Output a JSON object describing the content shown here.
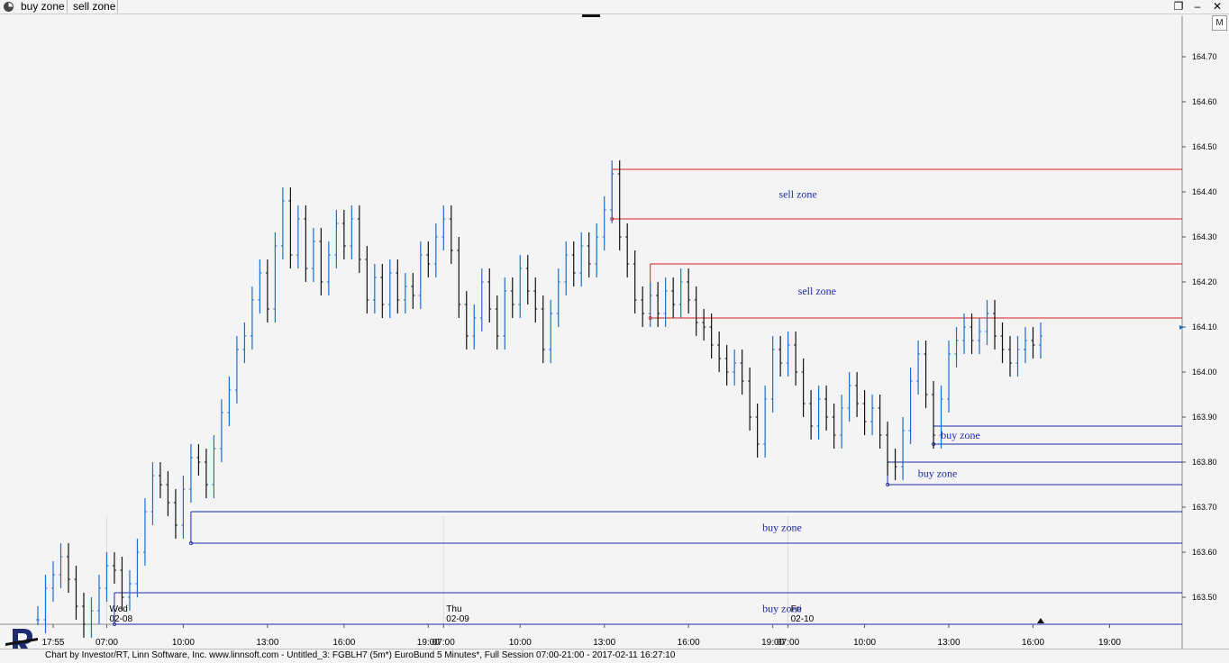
{
  "tabs": [
    {
      "label": "buy zone"
    },
    {
      "label": "sell zone"
    }
  ],
  "window": {
    "restore_icon": "restore-icon",
    "minimize_icon": "minimize-icon",
    "close_icon": "close-icon",
    "m_button_label": "M"
  },
  "status_bar": {
    "text": "Chart by Investor/RT, Linn Software, Inc. www.linnsoft.com - Untitled_3: FGBLH7 (5m*) EuroBund 5 Minutes*, Full Session 07:00-21:00 - 2017-02-11 16:27:10"
  },
  "colors": {
    "up_bar": "#1c6fd0",
    "down_bar": "#111111",
    "sell_zone": "#d42020",
    "buy_zone": "#1a2aa8",
    "zone_label": "#1a2aa8",
    "background": "#f4f4f4"
  },
  "chart_data": {
    "type": "line",
    "title": "",
    "symbol": "FGBLH7",
    "description": "EuroBund 5 Minutes",
    "interval": "5m",
    "ylim": [
      163.44,
      164.79
    ],
    "y_ticks": [
      "164.70",
      "164.60",
      "164.50",
      "164.40",
      "164.30",
      "164.20",
      "164.10",
      "164.00",
      "163.90",
      "163.80",
      "163.70",
      "163.60",
      "163.50"
    ],
    "x_ticks": [
      "17:55",
      "07:00",
      "10:00",
      "13:00",
      "16:00",
      "19:00",
      "07:00",
      "10:00",
      "13:00",
      "16:00",
      "19:00",
      "07:00",
      "10:00",
      "13:00",
      "16:00",
      "19:00"
    ],
    "day_labels": [
      {
        "day": "Wed",
        "date": "02-08"
      },
      {
        "day": "Thu",
        "date": "02-09"
      },
      {
        "day": "Fri",
        "date": "02-10"
      }
    ],
    "last_price": 164.1,
    "series": [
      {
        "points": [
          [
            0,
            163.45
          ],
          [
            1,
            163.52
          ],
          [
            2,
            163.55
          ],
          [
            3,
            163.59
          ],
          [
            4,
            163.54
          ],
          [
            5,
            163.48
          ],
          [
            6,
            163.44
          ],
          [
            7,
            163.47
          ],
          [
            8,
            163.52
          ],
          [
            9,
            163.57
          ],
          [
            10,
            163.56
          ],
          [
            11,
            163.5
          ],
          [
            12,
            163.53
          ],
          [
            13,
            163.6
          ],
          [
            14,
            163.69
          ],
          [
            15,
            163.77
          ],
          [
            16,
            163.75
          ],
          [
            17,
            163.71
          ],
          [
            18,
            163.66
          ],
          [
            19,
            163.74
          ],
          [
            20,
            163.81
          ],
          [
            21,
            163.8
          ],
          [
            22,
            163.75
          ],
          [
            23,
            163.83
          ],
          [
            24,
            163.91
          ],
          [
            25,
            163.96
          ],
          [
            26,
            164.05
          ],
          [
            27,
            164.08
          ],
          [
            28,
            164.16
          ],
          [
            29,
            164.22
          ],
          [
            30,
            164.14
          ],
          [
            31,
            164.28
          ],
          [
            32,
            164.38
          ],
          [
            33,
            164.26
          ],
          [
            34,
            164.34
          ],
          [
            35,
            164.23
          ],
          [
            36,
            164.29
          ],
          [
            37,
            164.2
          ],
          [
            38,
            164.26
          ],
          [
            39,
            164.33
          ],
          [
            40,
            164.28
          ],
          [
            41,
            164.34
          ],
          [
            42,
            164.25
          ],
          [
            43,
            164.16
          ],
          [
            44,
            164.21
          ],
          [
            45,
            164.15
          ],
          [
            46,
            164.22
          ],
          [
            47,
            164.16
          ],
          [
            48,
            164.19
          ],
          [
            49,
            164.17
          ],
          [
            50,
            164.26
          ],
          [
            51,
            164.24
          ],
          [
            52,
            164.3
          ],
          [
            53,
            164.34
          ],
          [
            54,
            164.27
          ],
          [
            55,
            164.15
          ],
          [
            56,
            164.08
          ],
          [
            57,
            164.12
          ],
          [
            58,
            164.2
          ],
          [
            59,
            164.14
          ],
          [
            60,
            164.08
          ],
          [
            61,
            164.18
          ],
          [
            62,
            164.15
          ],
          [
            63,
            164.23
          ],
          [
            64,
            164.18
          ],
          [
            65,
            164.14
          ],
          [
            66,
            164.05
          ],
          [
            67,
            164.13
          ],
          [
            68,
            164.2
          ],
          [
            69,
            164.26
          ],
          [
            70,
            164.22
          ],
          [
            71,
            164.28
          ],
          [
            72,
            164.24
          ],
          [
            73,
            164.3
          ],
          [
            74,
            164.36
          ],
          [
            75,
            164.44
          ],
          [
            76,
            164.3
          ],
          [
            77,
            164.24
          ],
          [
            78,
            164.16
          ],
          [
            79,
            164.13
          ],
          [
            80,
            164.17
          ],
          [
            81,
            164.13
          ],
          [
            82,
            164.18
          ],
          [
            83,
            164.15
          ],
          [
            84,
            164.2
          ],
          [
            85,
            164.16
          ],
          [
            86,
            164.11
          ],
          [
            87,
            164.1
          ],
          [
            88,
            164.06
          ],
          [
            89,
            164.03
          ],
          [
            90,
            164.0
          ],
          [
            91,
            164.02
          ],
          [
            92,
            163.98
          ],
          [
            93,
            163.9
          ],
          [
            94,
            163.84
          ],
          [
            95,
            163.94
          ],
          [
            96,
            164.05
          ],
          [
            97,
            164.02
          ],
          [
            98,
            164.06
          ],
          [
            99,
            164.0
          ],
          [
            100,
            163.93
          ],
          [
            101,
            163.88
          ],
          [
            102,
            163.94
          ],
          [
            103,
            163.9
          ],
          [
            104,
            163.86
          ],
          [
            105,
            163.92
          ],
          [
            106,
            163.97
          ],
          [
            107,
            163.93
          ],
          [
            108,
            163.89
          ],
          [
            109,
            163.92
          ],
          [
            110,
            163.86
          ],
          [
            111,
            163.8
          ],
          [
            112,
            163.79
          ],
          [
            113,
            163.87
          ],
          [
            114,
            163.98
          ],
          [
            115,
            164.04
          ],
          [
            116,
            163.95
          ],
          [
            117,
            163.86
          ],
          [
            118,
            163.94
          ],
          [
            119,
            164.04
          ],
          [
            120,
            164.07
          ],
          [
            121,
            164.1
          ],
          [
            122,
            164.07
          ],
          [
            123,
            164.09
          ],
          [
            124,
            164.13
          ],
          [
            125,
            164.08
          ],
          [
            126,
            164.05
          ],
          [
            127,
            164.02
          ],
          [
            128,
            164.05
          ],
          [
            129,
            164.07
          ],
          [
            130,
            164.06
          ],
          [
            131,
            164.08
          ]
        ]
      }
    ],
    "zones": [
      {
        "type": "sell",
        "label": "sell zone",
        "top": 164.45,
        "bottom": 164.34,
        "start_index": 75
      },
      {
        "type": "sell",
        "label": "sell zone",
        "top": 164.24,
        "bottom": 164.12,
        "start_index": 80
      },
      {
        "type": "buy",
        "label": "buy zone",
        "top": 163.88,
        "bottom": 163.84,
        "start_index": 117
      },
      {
        "type": "buy",
        "label": "buy zone",
        "top": 163.8,
        "bottom": 163.75,
        "start_index": 111
      },
      {
        "type": "buy",
        "label": "buy zone",
        "top": 163.69,
        "bottom": 163.62,
        "start_index": 20
      },
      {
        "type": "buy",
        "label": "buy zone",
        "top": 163.51,
        "bottom": 163.44,
        "start_index": 10
      }
    ]
  }
}
